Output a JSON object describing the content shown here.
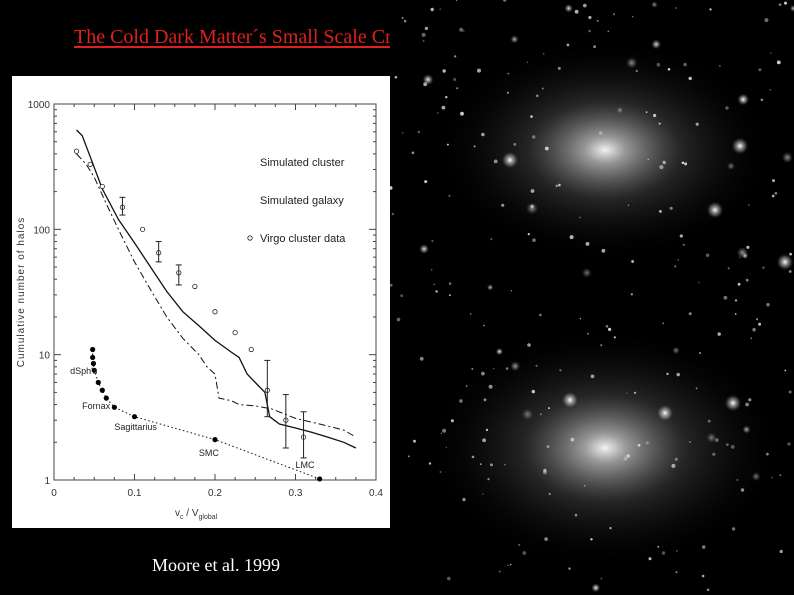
{
  "slide": {
    "title": "The Cold Dark Matter´s Small Scale Crisis",
    "caption": "Moore et al. 1999"
  },
  "simulation_image": {
    "description_icon": "dark-matter-halo-simulation-image"
  },
  "chart_data": {
    "type": "line",
    "title": "",
    "xlabel": "v_c / v_global",
    "xlabel_main": "v",
    "xlabel_sub1": "c",
    "xlabel_mid": " / V",
    "xlabel_sub2": "global",
    "ylabel": "Cumulative number of halos",
    "xlim": [
      0,
      0.4
    ],
    "ylim": [
      1,
      1000
    ],
    "yscale": "log",
    "x_ticks": [
      0,
      0.1,
      0.2,
      0.3,
      0.4
    ],
    "x_tick_labels": [
      "0",
      "0.1",
      "0.2",
      "0.3",
      "0.4"
    ],
    "y_ticks": [
      1,
      10,
      100,
      1000
    ],
    "y_tick_labels": [
      "1",
      "10",
      "100",
      "1000"
    ],
    "legend": [
      {
        "label": "Simulated cluster",
        "style": "solid"
      },
      {
        "label": "Simulated galaxy",
        "style": "dashdot"
      },
      {
        "label": "Virgo cluster data",
        "style": "open-circle"
      }
    ],
    "series": [
      {
        "name": "Simulated cluster",
        "style": "solid",
        "points": [
          [
            0.028,
            620
          ],
          [
            0.035,
            560
          ],
          [
            0.045,
            380
          ],
          [
            0.06,
            210
          ],
          [
            0.08,
            120
          ],
          [
            0.1,
            78
          ],
          [
            0.12,
            50
          ],
          [
            0.14,
            32
          ],
          [
            0.16,
            22
          ],
          [
            0.18,
            17
          ],
          [
            0.2,
            13
          ],
          [
            0.22,
            10.5
          ],
          [
            0.23,
            9.5
          ],
          [
            0.24,
            7
          ],
          [
            0.25,
            6
          ],
          [
            0.262,
            5
          ],
          [
            0.268,
            3.2
          ],
          [
            0.28,
            2.8
          ],
          [
            0.3,
            2.6
          ],
          [
            0.32,
            2.4
          ],
          [
            0.34,
            2.2
          ],
          [
            0.36,
            2.0
          ],
          [
            0.375,
            1.8
          ]
        ]
      },
      {
        "name": "Simulated galaxy",
        "style": "dashdot",
        "points": [
          [
            0.028,
            400
          ],
          [
            0.04,
            330
          ],
          [
            0.05,
            260
          ],
          [
            0.065,
            160
          ],
          [
            0.08,
            100
          ],
          [
            0.1,
            55
          ],
          [
            0.12,
            33
          ],
          [
            0.14,
            20
          ],
          [
            0.16,
            13.5
          ],
          [
            0.18,
            10
          ],
          [
            0.19,
            8
          ],
          [
            0.2,
            7
          ],
          [
            0.205,
            4.5
          ],
          [
            0.22,
            4.3
          ],
          [
            0.23,
            4.0
          ],
          [
            0.25,
            3.9
          ],
          [
            0.27,
            3.7
          ],
          [
            0.3,
            3.1
          ],
          [
            0.33,
            2.8
          ],
          [
            0.36,
            2.5
          ],
          [
            0.375,
            2.2
          ]
        ]
      },
      {
        "name": "Virgo cluster data",
        "style": "open-circle",
        "points": [
          [
            0.028,
            420
          ],
          [
            0.045,
            330
          ],
          [
            0.06,
            220
          ],
          [
            0.085,
            150
          ],
          [
            0.11,
            100
          ],
          [
            0.13,
            65
          ],
          [
            0.155,
            45
          ],
          [
            0.175,
            35
          ],
          [
            0.2,
            22
          ],
          [
            0.225,
            15
          ],
          [
            0.245,
            11
          ],
          [
            0.265,
            5.2
          ],
          [
            0.288,
            3.0
          ],
          [
            0.31,
            2.2
          ]
        ],
        "error_bars": [
          [
            0.085,
            130,
            180
          ],
          [
            0.13,
            55,
            80
          ],
          [
            0.155,
            36,
            52
          ],
          [
            0.265,
            3.2,
            9
          ],
          [
            0.288,
            1.8,
            4.8
          ],
          [
            0.31,
            1.5,
            3.5
          ]
        ]
      },
      {
        "name": "Local Group dwarfs",
        "style": "filled-dots-dotted",
        "points": [
          [
            0.048,
            11
          ],
          [
            0.048,
            9.5
          ],
          [
            0.049,
            8.5
          ],
          [
            0.05,
            7.5
          ],
          [
            0.055,
            6
          ],
          [
            0.06,
            5.2
          ],
          [
            0.065,
            4.5
          ],
          [
            0.075,
            3.8
          ],
          [
            0.1,
            3.2
          ],
          [
            0.2,
            2.1
          ],
          [
            0.33,
            1.02
          ]
        ]
      }
    ],
    "annotations": [
      {
        "text": "dSph's",
        "x": 0.02,
        "y": 7
      },
      {
        "text": "Fornax",
        "x": 0.035,
        "y": 3.7
      },
      {
        "text": "Sagittarius",
        "x": 0.075,
        "y": 2.5
      },
      {
        "text": "SMC",
        "x": 0.18,
        "y": 1.55
      },
      {
        "text": "LMC",
        "x": 0.3,
        "y": 1.25
      }
    ]
  }
}
